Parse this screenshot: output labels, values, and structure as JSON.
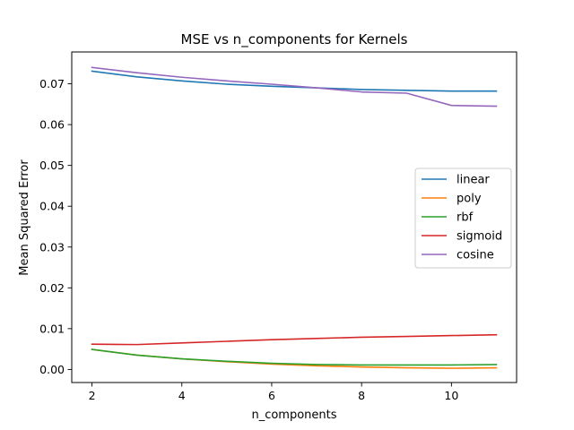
{
  "chart_data": {
    "type": "line",
    "title": "MSE vs n_components for Kernels",
    "xlabel": "n_components",
    "ylabel": "Mean Squared Error",
    "xlim": [
      1.55,
      11.45
    ],
    "ylim": [
      -0.0032,
      0.0778
    ],
    "xticks": [
      2,
      4,
      6,
      8,
      10
    ],
    "xtick_labels": [
      "2",
      "4",
      "6",
      "8",
      "10"
    ],
    "yticks": [
      0.0,
      0.01,
      0.02,
      0.03,
      0.04,
      0.05,
      0.06,
      0.07
    ],
    "ytick_labels": [
      "0.00",
      "0.01",
      "0.02",
      "0.03",
      "0.04",
      "0.05",
      "0.06",
      "0.07"
    ],
    "grid": false,
    "legend_position": "center-right",
    "x": [
      2,
      3,
      4,
      5,
      6,
      7,
      8,
      9,
      10,
      11
    ],
    "series": [
      {
        "name": "linear",
        "color": "#1f77b4",
        "values": [
          0.0731,
          0.0717,
          0.0707,
          0.0699,
          0.0694,
          0.069,
          0.0686,
          0.0684,
          0.0682,
          0.0682
        ]
      },
      {
        "name": "poly",
        "color": "#ff7f0e",
        "values": [
          0.0049,
          0.0035,
          0.0026,
          0.0019,
          0.0013,
          0.0009,
          0.0006,
          0.0004,
          0.0003,
          0.0004
        ]
      },
      {
        "name": "rbf",
        "color": "#2ca02c",
        "values": [
          0.0049,
          0.0035,
          0.0026,
          0.002,
          0.0015,
          0.0012,
          0.0011,
          0.0011,
          0.0011,
          0.0012
        ]
      },
      {
        "name": "sigmoid",
        "color": "#d62728",
        "values": [
          0.0062,
          0.0061,
          0.0065,
          0.0069,
          0.0073,
          0.0076,
          0.0079,
          0.0081,
          0.0083,
          0.0085
        ]
      },
      {
        "name": "cosine",
        "color": "#9467bd",
        "values": [
          0.074,
          0.0727,
          0.0716,
          0.0707,
          0.0699,
          0.069,
          0.068,
          0.0677,
          0.0647,
          0.0645
        ]
      }
    ]
  }
}
